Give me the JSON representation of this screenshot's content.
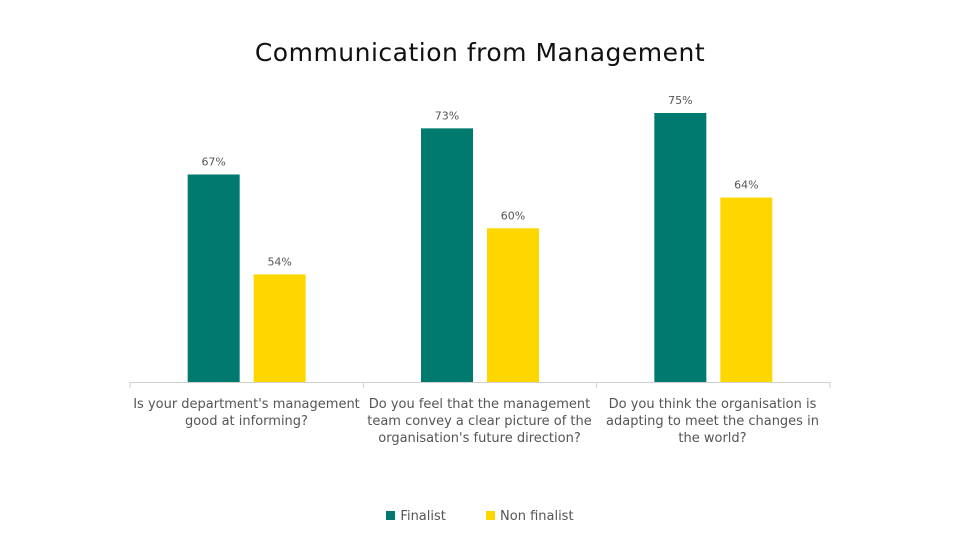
{
  "chart_data": {
    "type": "bar",
    "title": "Communication from Management",
    "categories": [
      "Is your department's management good at informing?",
      "Do you feel that the management team convey a clear picture of the organisation's future direction?",
      "Do you think the organisation is adapting to meet the changes in the world?"
    ],
    "series": [
      {
        "name": "Finalist",
        "values": [
          67,
          73,
          75
        ],
        "labels": [
          "67%",
          "73%",
          "75%"
        ],
        "color": "#007A6E"
      },
      {
        "name": "Non finalist",
        "values": [
          54,
          60,
          64
        ],
        "labels": [
          "54%",
          "60%",
          "64%"
        ],
        "color": "#FFD700"
      }
    ],
    "ylim": [
      40,
      78
    ],
    "grid": false,
    "legend": "bottom"
  }
}
